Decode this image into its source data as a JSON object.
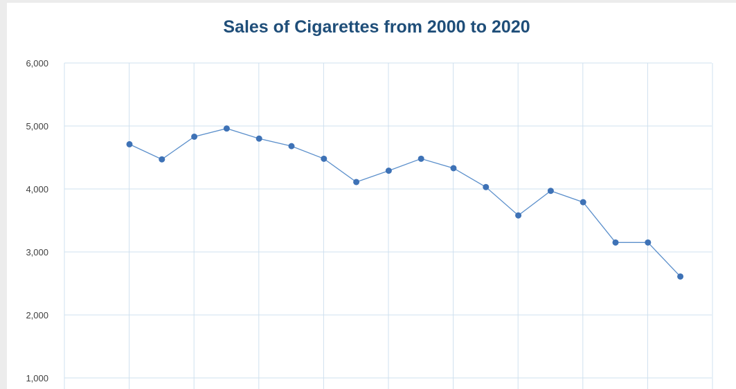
{
  "chart_data": {
    "type": "line",
    "title": "Sales of Cigarettes from 2000 to 2020",
    "xlabel": "",
    "ylabel": "",
    "ylim": [
      1000,
      6000
    ],
    "y_ticks": [
      1000,
      2000,
      3000,
      4000,
      5000,
      6000
    ],
    "y_tick_labels": [
      "1,000",
      "2,000",
      "3,000",
      "4,000",
      "5,000",
      "6,000"
    ],
    "grid": true,
    "legend": "none",
    "colors": {
      "series": "#3e72b6",
      "line": "#5b8fcb",
      "grid": "#cfe0ef",
      "title": "#1f4e79"
    },
    "series": [
      {
        "values": [
          4710,
          4470,
          4830,
          4960,
          4800,
          4680,
          4480,
          4110,
          4290,
          4480,
          4330,
          4030,
          3580,
          3970,
          3790,
          3150,
          3150,
          2610
        ]
      }
    ]
  }
}
